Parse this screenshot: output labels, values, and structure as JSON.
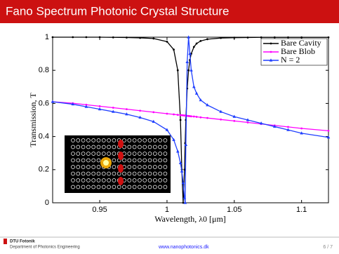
{
  "slide": {
    "title": "Fano Spectrum Photonic Crystal Structure",
    "org": "DTU Fotonik",
    "department": "Department of Photonics Engineering",
    "url": "www.nanophotonics.dk",
    "page": "6 / 7"
  },
  "chart_data": {
    "type": "line",
    "y_label": "Transmission, T",
    "x_label": "Wavelength, λ0 [μm]",
    "x": [
      0.915,
      0.93,
      0.94,
      0.95,
      0.96,
      0.97,
      0.98,
      0.99,
      1.0,
      1.005,
      1.008,
      1.01,
      1.011,
      1.012,
      1.013,
      1.0135,
      1.014,
      1.015,
      1.016,
      1.017,
      1.018,
      1.02,
      1.022,
      1.025,
      1.03,
      1.04,
      1.05,
      1.06,
      1.07,
      1.08,
      1.09,
      1.1,
      1.12
    ],
    "series": [
      {
        "name": "Bare Cavity",
        "color": "#000000",
        "marker": "dot",
        "values": [
          1.0,
          1.0,
          1.0,
          1.0,
          0.999,
          0.998,
          0.996,
          0.992,
          0.973,
          0.925,
          0.8,
          0.5,
          0.2,
          0.0,
          0.2,
          0.36,
          0.5,
          0.69,
          0.8,
          0.862,
          0.9,
          0.941,
          0.962,
          0.977,
          0.988,
          0.995,
          0.997,
          0.998,
          0.999,
          0.999,
          0.999,
          0.999,
          0.999
        ]
      },
      {
        "name": "Bare Blob",
        "color": "#ff00ff",
        "marker": "dot",
        "values": [
          0.61,
          0.601,
          0.592,
          0.583,
          0.574,
          0.565,
          0.556,
          0.547,
          0.538,
          0.534,
          0.531,
          0.529,
          0.529,
          0.528,
          0.527,
          0.527,
          0.526,
          0.525,
          0.524,
          0.523,
          0.522,
          0.521,
          0.519,
          0.516,
          0.512,
          0.503,
          0.494,
          0.485,
          0.476,
          0.467,
          0.458,
          0.449,
          0.435
        ]
      },
      {
        "name": "N = 2",
        "color": "#1f3fff",
        "marker": "triangle",
        "values": [
          0.61,
          0.595,
          0.58,
          0.565,
          0.55,
          0.535,
          0.515,
          0.49,
          0.44,
          0.38,
          0.31,
          0.24,
          0.19,
          0.12,
          0.03,
          0.0,
          0.35,
          0.85,
          1.0,
          0.9,
          0.8,
          0.7,
          0.66,
          0.62,
          0.59,
          0.55,
          0.52,
          0.5,
          0.48,
          0.46,
          0.44,
          0.42,
          0.395
        ]
      }
    ],
    "xlim": [
      0.915,
      1.12
    ],
    "ylim": [
      0,
      1
    ],
    "xticks": [
      0.95,
      1,
      1.05,
      1.1
    ],
    "yticks": [
      0,
      0.2,
      0.4,
      0.6,
      0.8,
      1
    ],
    "legend": "top-right"
  }
}
